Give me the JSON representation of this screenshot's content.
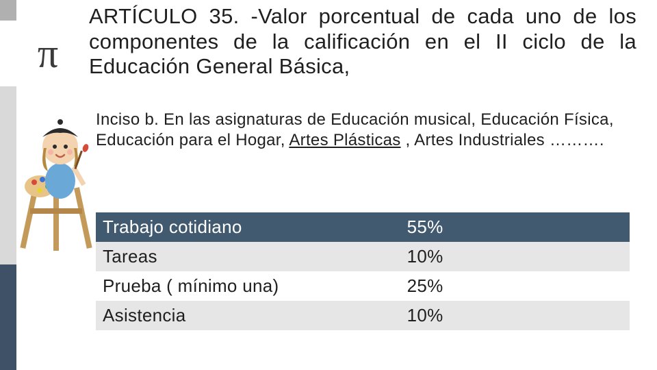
{
  "pi_symbol": "π",
  "title": "ARTÍCULO 35. -Valor porcentual de cada uno de los componentes de la calificación en el II ciclo de la Educación General Básica,",
  "body": {
    "prefix": "Inciso b. En las asignaturas de  Educación musical, Educación Física, Educación para el Hogar, ",
    "underline1": "Artes Plásticas",
    "mid": " , ",
    "tail": "Artes Industriales ………."
  },
  "table": {
    "rows": [
      {
        "label": "Trabajo cotidiano",
        "value": "55%",
        "style": "header"
      },
      {
        "label": "Tareas",
        "value": "10%",
        "style": "alt"
      },
      {
        "label": "Prueba ( mínimo una)",
        "value": "25%",
        "style": "plain"
      },
      {
        "label": "Asistencia",
        "value": "10%",
        "style": "alt"
      }
    ]
  },
  "colors": {
    "rail_gray": "#d9d9d9",
    "rail_dark": "#3e5166",
    "header_bg": "#425a70",
    "alt_bg": "#e6e6e6"
  }
}
